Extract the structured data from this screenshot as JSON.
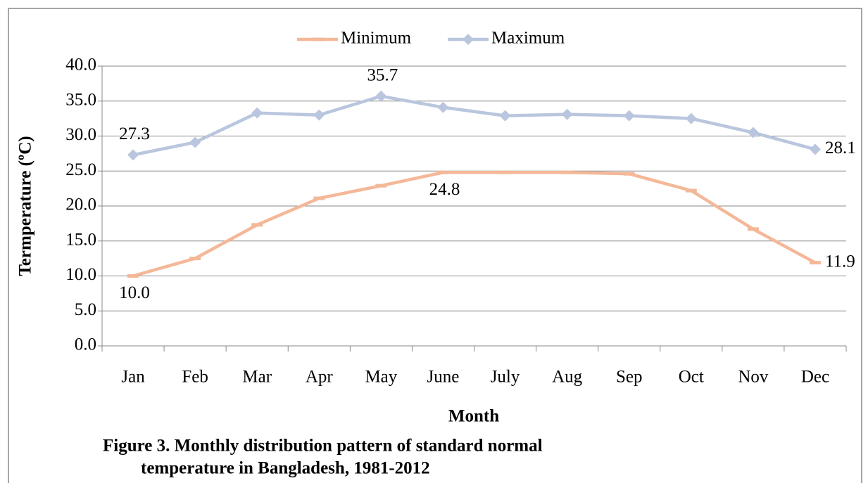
{
  "chart_data": {
    "type": "line",
    "x_label": "Month",
    "y_label": "Termperature (ºC)",
    "caption": [
      "Figure 3. Monthly distribution pattern of standard normal",
      "temperature in Bangladesh, 1981-2012"
    ],
    "categories": [
      "Jan",
      "Feb",
      "Mar",
      "Apr",
      "May",
      "June",
      "July",
      "Aug",
      "Sep",
      "Oct",
      "Nov",
      "Dec"
    ],
    "series": [
      {
        "name": "Minimum",
        "color": "#f4b899",
        "marker": "dash",
        "values": [
          10.0,
          12.5,
          17.3,
          21.1,
          22.9,
          24.8,
          24.8,
          24.8,
          24.6,
          22.2,
          16.7,
          11.9
        ],
        "value_labels": [
          "10.0",
          null,
          null,
          null,
          null,
          "24.8",
          null,
          null,
          null,
          null,
          null,
          "11.9"
        ]
      },
      {
        "name": "Maximum",
        "color": "#b9c6de",
        "marker": "diamond",
        "values": [
          27.3,
          29.1,
          33.3,
          33.0,
          35.7,
          34.1,
          32.9,
          33.1,
          32.9,
          32.5,
          30.5,
          28.1
        ],
        "value_labels": [
          "27.3",
          null,
          null,
          null,
          "35.7",
          null,
          null,
          null,
          null,
          null,
          null,
          "28.1"
        ]
      }
    ],
    "ylim": [
      0,
      40
    ],
    "yticks": [
      {
        "value": 0,
        "label": "0.0"
      },
      {
        "value": 5,
        "label": "5.0"
      },
      {
        "value": 10,
        "label": "10.0"
      },
      {
        "value": 15,
        "label": "15.0"
      },
      {
        "value": 20,
        "label": "20.0"
      },
      {
        "value": 25,
        "label": "25.0"
      },
      {
        "value": 30,
        "label": "30.0"
      },
      {
        "value": 35,
        "label": "35.0"
      },
      {
        "value": 40,
        "label": "40.0"
      }
    ],
    "grid": true,
    "legend": "top"
  }
}
